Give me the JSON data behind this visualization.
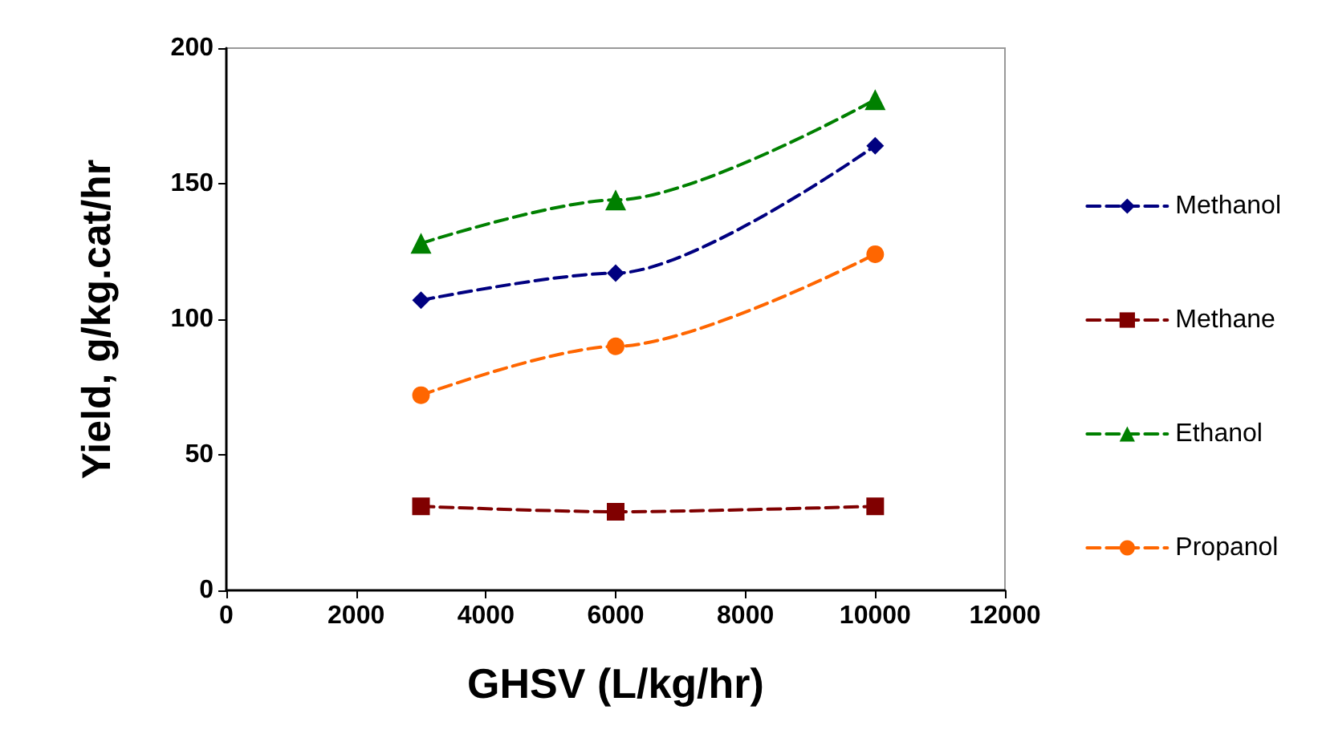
{
  "chart_data": {
    "type": "line",
    "xlabel": "GHSV (L/kg/hr)",
    "ylabel": "Yield, g/kg.cat/hr",
    "x": [
      3000,
      6000,
      10000
    ],
    "series": [
      {
        "name": "Methanol",
        "color": "#000080",
        "marker": "diamond",
        "values": [
          107,
          117,
          164
        ]
      },
      {
        "name": "Methane",
        "color": "#800000",
        "marker": "square",
        "values": [
          31,
          29,
          31
        ]
      },
      {
        "name": "Ethanol",
        "color": "#008000",
        "marker": "triangle",
        "values": [
          128,
          144,
          181
        ]
      },
      {
        "name": "Propanol",
        "color": "#ff6600",
        "marker": "circle",
        "values": [
          72,
          90,
          124
        ]
      }
    ],
    "xlim": [
      0,
      12000
    ],
    "xticks": [
      0,
      2000,
      4000,
      6000,
      8000,
      10000,
      12000
    ],
    "ylim": [
      0,
      200
    ],
    "yticks": [
      0,
      50,
      100,
      150,
      200
    ],
    "grid": false,
    "legend": "right",
    "line_style": "dashed"
  }
}
